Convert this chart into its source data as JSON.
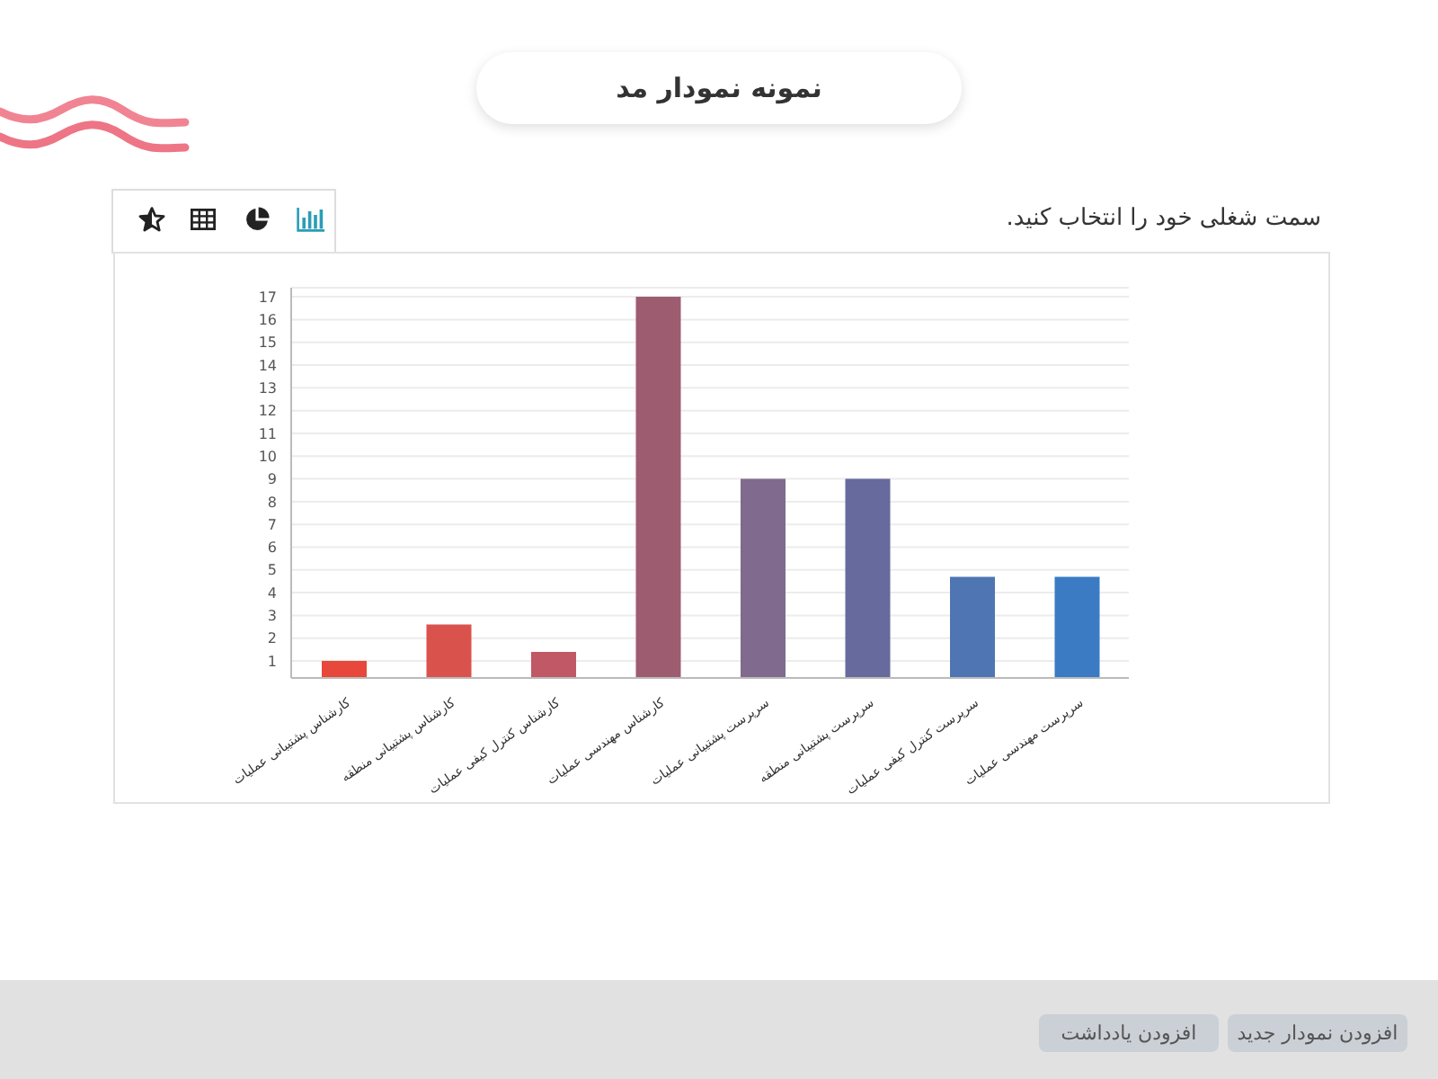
{
  "chart_data": {
    "type": "bar",
    "title": "نمونه نمودار مد",
    "subtitle": "سمت شغلی خود را انتخاب کنید.",
    "categories": [
      "کارشناس پشتیبانی عملیات",
      "کارشناس پشتیبانی منطقه",
      "کارشناس کنترل کیفی عملیات",
      "کارشناس مهندسی عملیات",
      "سرپرست پشتیبانی عملیات",
      "سرپرست پشتیبانی منطقه",
      "سرپرست کنترل کیفی عملیات",
      "سرپرست مهندسی عملیات"
    ],
    "values": [
      1,
      2.6,
      1.4,
      17,
      9,
      9,
      4.7,
      4.7
    ],
    "colors": [
      "#e8473b",
      "#d9534c",
      "#c05865",
      "#9e5c71",
      "#806a8e",
      "#676a9c",
      "#4f76b3",
      "#3a7bc4"
    ],
    "ylim": [
      0.25,
      17.4
    ],
    "yticks": [
      1,
      2,
      3,
      4,
      5,
      6,
      7,
      8,
      9,
      10,
      11,
      12,
      13,
      14,
      15,
      16,
      17
    ],
    "grid": "y",
    "annotations": [
      "افزودن نمودار جدید",
      "افزودن یادداشت"
    ]
  }
}
